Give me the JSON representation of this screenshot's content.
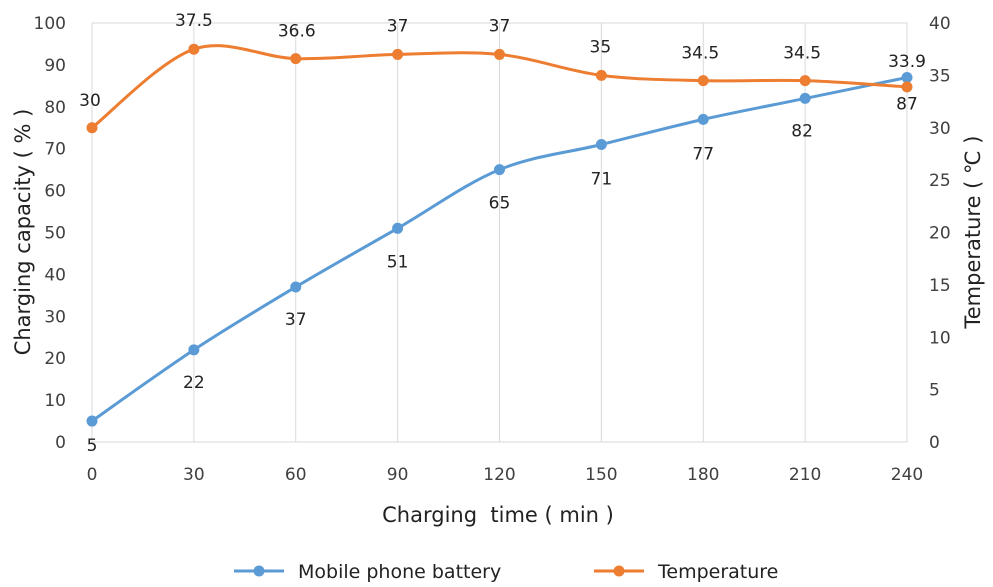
{
  "chart_data": {
    "type": "line",
    "x": [
      0,
      30,
      60,
      90,
      120,
      150,
      180,
      210,
      240
    ],
    "x_tick_labels": [
      "0",
      "30",
      "60",
      "90",
      "120",
      "150",
      "180",
      "210",
      "240"
    ],
    "xlabel": "Charging  time ( min )",
    "ylabel": "Charging capacity ( % )",
    "y2label": "Temperature ( ℃ )",
    "xlim": [
      0,
      240
    ],
    "ylim": [
      0,
      100
    ],
    "y2lim": [
      0,
      40
    ],
    "y_tick_labels": [
      "0",
      "10",
      "20",
      "30",
      "40",
      "50",
      "60",
      "70",
      "80",
      "90",
      "100"
    ],
    "y2_tick_labels": [
      "0",
      "5",
      "10",
      "15",
      "20",
      "25",
      "30",
      "35",
      "40"
    ],
    "grid": "vertical",
    "legend_position": "bottom",
    "series": [
      {
        "name": "Mobile phone battery",
        "axis": "left",
        "color": "#5b9bd5",
        "values": [
          5,
          22,
          37,
          51,
          65,
          71,
          77,
          82,
          87
        ],
        "labels": [
          "5",
          "22",
          "37",
          "51",
          "65",
          "71",
          "77",
          "82",
          "87"
        ]
      },
      {
        "name": "Temperature",
        "axis": "right",
        "color": "#ed7d31",
        "values": [
          30,
          37.5,
          36.6,
          37,
          37,
          35,
          34.5,
          34.5,
          33.9
        ],
        "labels": [
          "30",
          "37.5",
          "36.6",
          "37",
          "37",
          "35",
          "34.5",
          "34.5",
          "33.9"
        ]
      }
    ]
  }
}
